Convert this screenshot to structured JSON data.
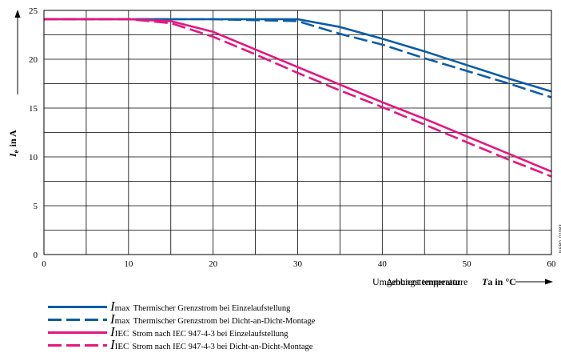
{
  "chart_data": {
    "type": "line",
    "title": "",
    "xlabel": "Umgebungstemperatur",
    "xlabel_overlay": "Ambient temperature",
    "xsymbol": "T",
    "xsymbol_sub": "a",
    "xunit": "in °C",
    "ylabel_symbol": "I",
    "ylabel_sub": "e",
    "ylabel_unit": "in A",
    "xlim": [
      0,
      60
    ],
    "ylim": [
      0,
      25
    ],
    "x_ticks": [
      "0",
      "10",
      "20",
      "30",
      "40",
      "50",
      "60"
    ],
    "y_ticks": [
      "0",
      "5",
      "10",
      "15",
      "20",
      "25"
    ],
    "grid": true,
    "side_code": "NSB0_01083",
    "series": [
      {
        "name": "Thermischer Grenzstrom bei Einzelaufstellung",
        "symbol": "I",
        "sub": "max",
        "color": "#0b5ca8",
        "dash": "solid",
        "x": [
          0,
          10,
          15,
          20,
          30,
          35,
          40,
          45,
          50,
          55,
          60
        ],
        "y": [
          24.1,
          24.1,
          24.1,
          24.1,
          24.1,
          23.3,
          22.1,
          20.8,
          19.4,
          18.0,
          16.7
        ]
      },
      {
        "name": "Thermischer Grenzstrom bei Dicht-an-Dicht-Montage",
        "symbol": "I",
        "sub": "max",
        "color": "#0b5ca8",
        "dash": "dashed",
        "x": [
          0,
          10,
          15,
          20,
          30,
          35,
          40,
          45,
          50,
          55,
          60
        ],
        "y": [
          24.1,
          24.1,
          24.1,
          24.1,
          23.9,
          22.6,
          21.5,
          20.1,
          18.8,
          17.5,
          16.1
        ]
      },
      {
        "name": "Strom nach IEC 947-4-3 bei Einzelaufstellung",
        "symbol": "I",
        "sub": "IEC",
        "color": "#e5167f",
        "dash": "solid",
        "x": [
          0,
          10,
          15,
          20,
          25,
          30,
          35,
          40,
          45,
          50,
          55,
          60
        ],
        "y": [
          24.1,
          24.1,
          23.9,
          22.8,
          21.0,
          19.2,
          17.4,
          15.6,
          13.9,
          12.1,
          10.3,
          8.5
        ]
      },
      {
        "name": "Strom nach IEC 947-4-3 bei Dicht-an-Dicht-Montage",
        "symbol": "I",
        "sub": "IEC",
        "color": "#e5167f",
        "dash": "dashed",
        "x": [
          0,
          10,
          15,
          20,
          25,
          30,
          35,
          40,
          45,
          50,
          55,
          60
        ],
        "y": [
          24.1,
          24.1,
          23.7,
          22.3,
          20.5,
          18.6,
          16.8,
          15.1,
          13.3,
          11.5,
          9.7,
          8.0
        ]
      }
    ]
  }
}
